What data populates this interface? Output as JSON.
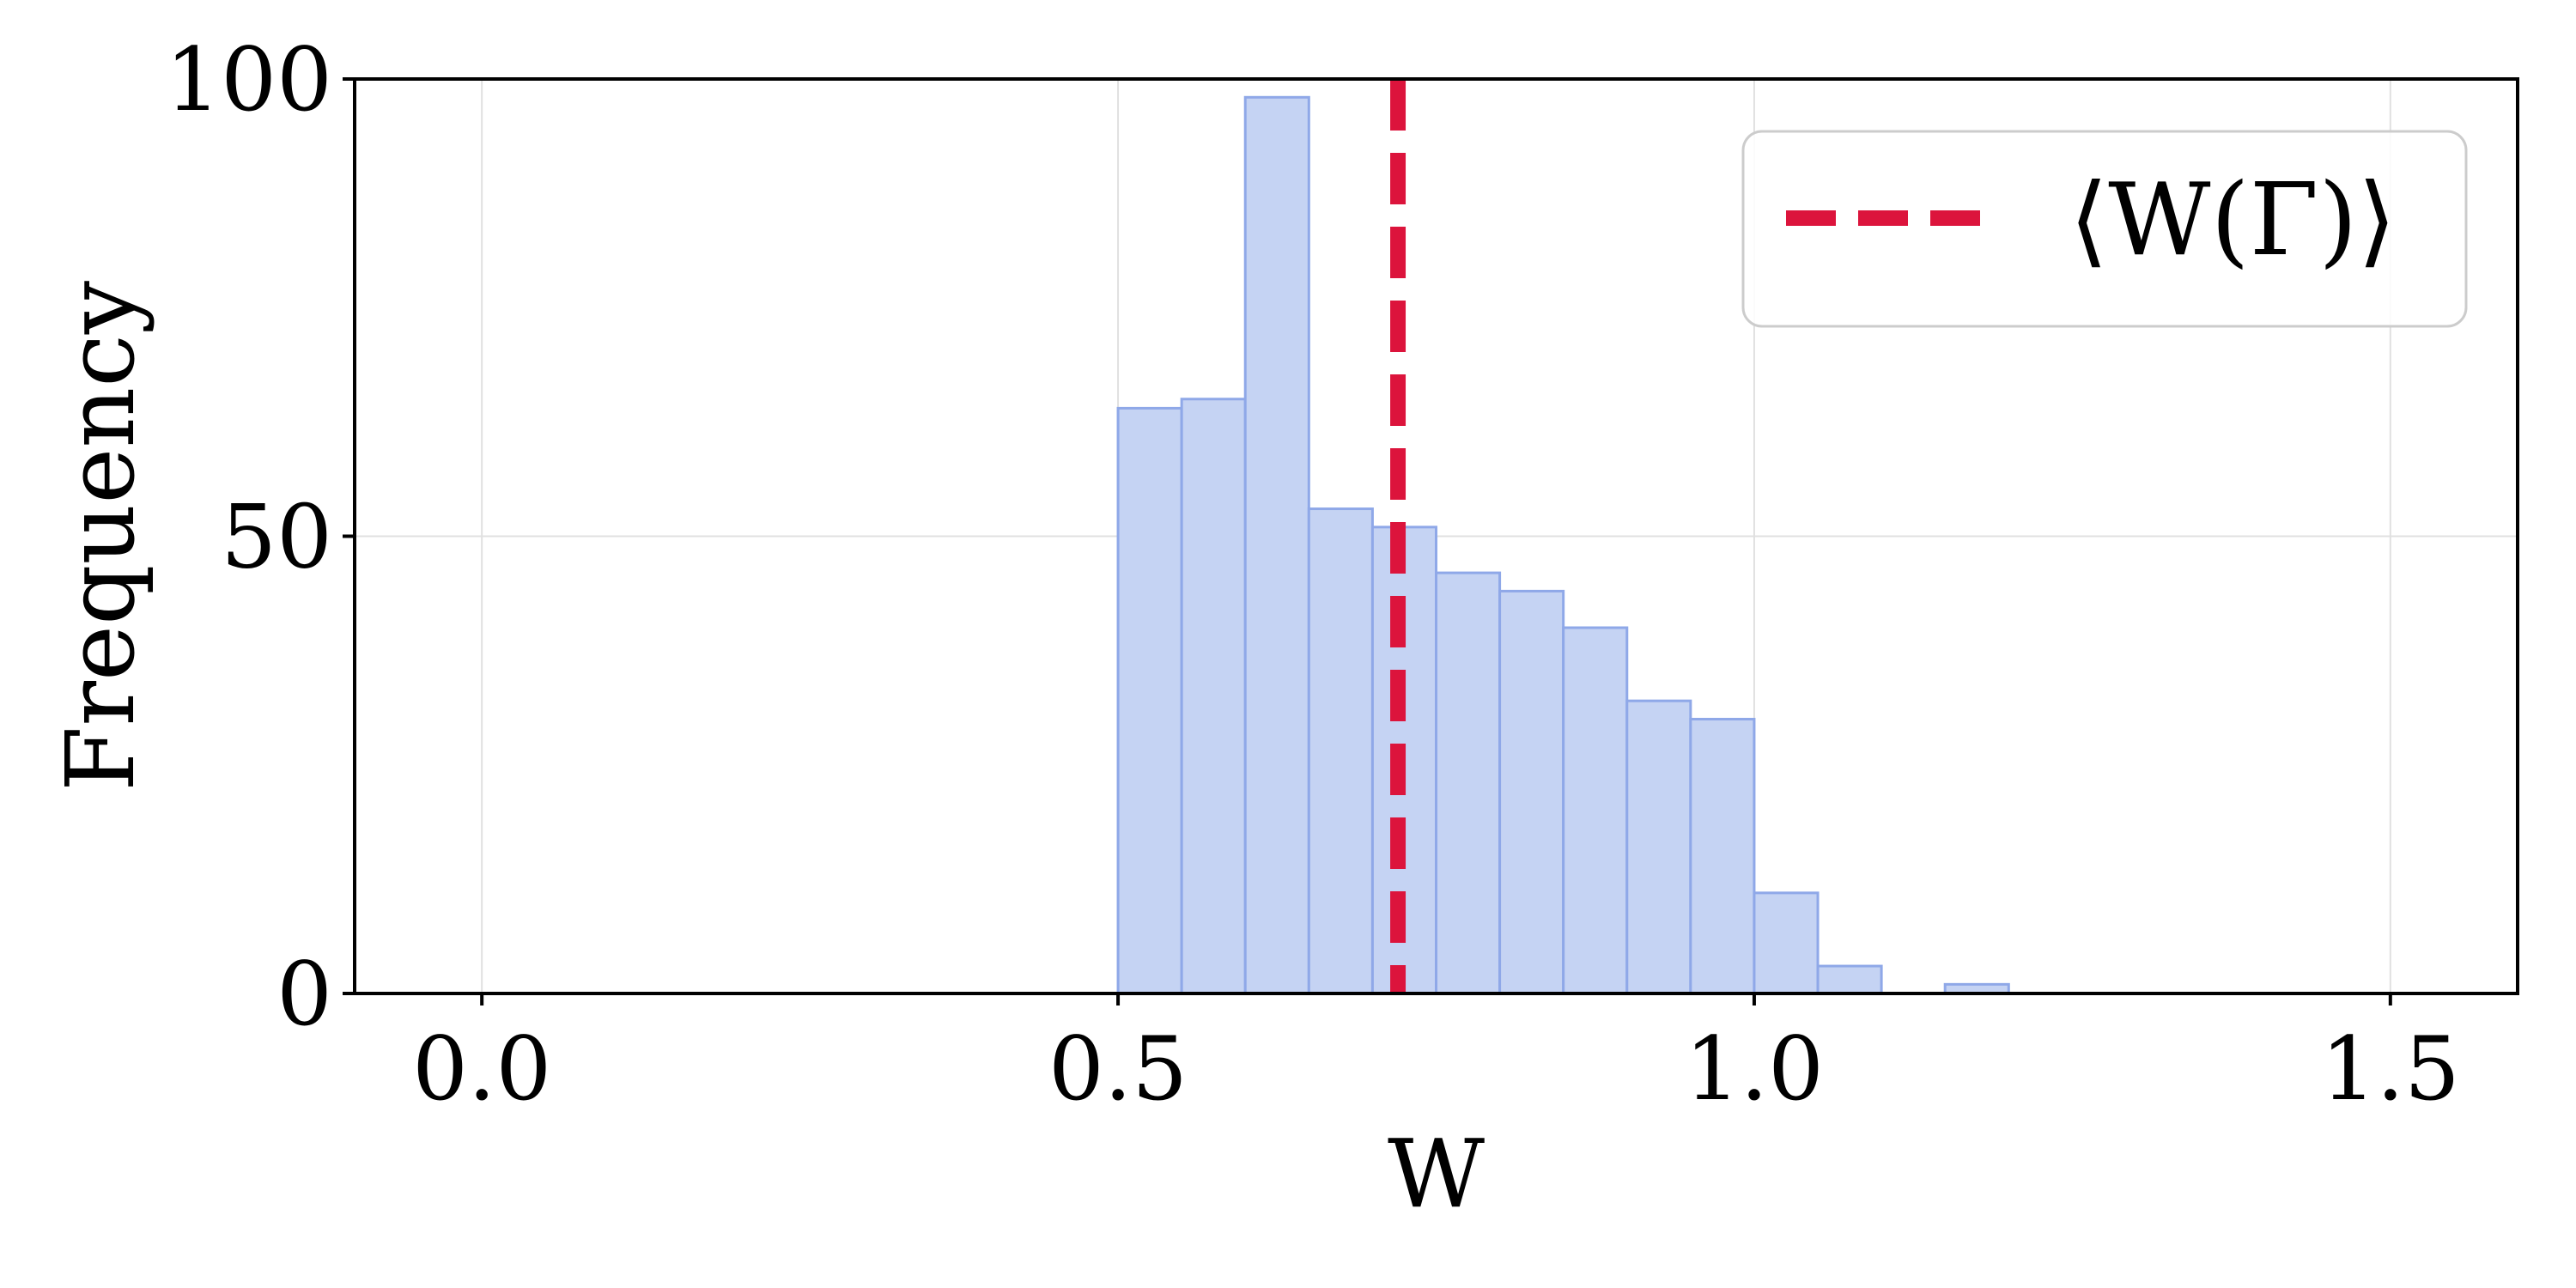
{
  "chart_data": {
    "type": "bar",
    "subtype": "histogram",
    "title": "",
    "xlabel": "W",
    "ylabel": "Frequency",
    "xlim": [
      -0.1,
      1.6
    ],
    "ylim": [
      0,
      100
    ],
    "xticks": [
      0.0,
      0.5,
      1.0,
      1.5
    ],
    "xtick_labels": [
      "0.0",
      "0.5",
      "1.0",
      "1.5"
    ],
    "yticks": [
      0,
      50,
      100
    ],
    "ytick_labels": [
      "0",
      "50",
      "100"
    ],
    "grid": true,
    "bins": [
      {
        "x0": 0.5,
        "x1": 0.55,
        "count": 64
      },
      {
        "x0": 0.55,
        "x1": 0.6,
        "count": 65
      },
      {
        "x0": 0.6,
        "x1": 0.65,
        "count": 98
      },
      {
        "x0": 0.65,
        "x1": 0.7,
        "count": 53
      },
      {
        "x0": 0.7,
        "x1": 0.75,
        "count": 51
      },
      {
        "x0": 0.75,
        "x1": 0.8,
        "count": 46
      },
      {
        "x0": 0.8,
        "x1": 0.85,
        "count": 44
      },
      {
        "x0": 0.85,
        "x1": 0.9,
        "count": 40
      },
      {
        "x0": 0.9,
        "x1": 0.95,
        "count": 32
      },
      {
        "x0": 0.95,
        "x1": 1.0,
        "count": 30
      },
      {
        "x0": 1.0,
        "x1": 1.05,
        "count": 11
      },
      {
        "x0": 1.05,
        "x1": 1.1,
        "count": 3
      },
      {
        "x0": 1.1,
        "x1": 1.15,
        "count": 0
      },
      {
        "x0": 1.15,
        "x1": 1.2,
        "count": 1
      }
    ],
    "mean_line": {
      "x": 0.72,
      "label": "⟨W(Γ)⟩",
      "style": "dashed"
    },
    "legend_position": "top-right",
    "colors": {
      "bar_fill": "#c5d3f3",
      "bar_edge": "#8fa8e8",
      "mean_line": "#dc143c",
      "grid": "#e0e0e0",
      "axis": "#000000",
      "legend_border": "#cccccc"
    }
  }
}
